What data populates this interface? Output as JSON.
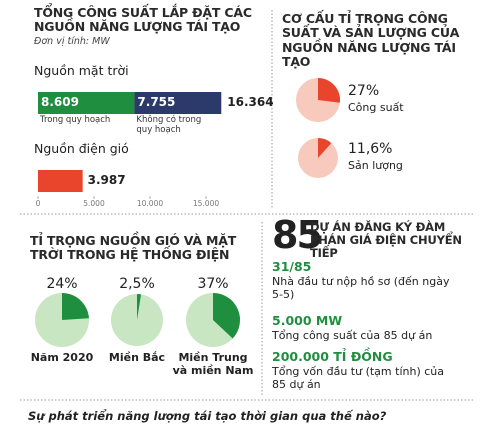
{
  "chart_data": [
    {
      "type": "bar",
      "orientation": "horizontal",
      "title": "TỔNG CÔNG SUẤT LẮP ĐẶT CÁC NGUỒN NĂNG LƯỢNG TÁI TẠO",
      "subtitle": "Đơn vị tính: MW",
      "categories": [
        "Nguồn mặt trời",
        "Nguồn điện gió"
      ],
      "series": [
        {
          "name": "Trong quy hoạch",
          "color": "#1f8f3f",
          "values": [
            8609,
            null
          ],
          "value_labels": [
            "8.609",
            null
          ]
        },
        {
          "name": "Không có trong quy hoạch",
          "color": "#2b3a6b",
          "values": [
            7755,
            null
          ],
          "value_labels": [
            "7.755",
            null
          ]
        },
        {
          "color": "#e8452c",
          "values": [
            null,
            3987
          ],
          "value_labels": [
            null,
            "3.987"
          ]
        }
      ],
      "total_labels": [
        "16.364",
        null
      ],
      "xlim": [
        0,
        20000
      ],
      "xticks": [
        0,
        {
          "value": 5000,
          "label": "5.000"
        },
        {
          "value": 10000,
          "label": "10.000"
        },
        {
          "value": 15000,
          "label": "15.000"
        }
      ]
    },
    {
      "type": "pie",
      "title": "CƠ CẤU TỈ TRỌNG CÔNG SUẤT VÀ SẢN LƯỢNG CỦA NGUỒN NĂNG LƯỢNG TÁI TẠO",
      "categories": [
        "Công suất",
        "Sản lượng"
      ],
      "values": [
        27,
        11.6
      ],
      "value_labels": [
        "27%",
        "11,6%"
      ],
      "color": "#e8452c",
      "base_color": "#f7cabd"
    },
    {
      "type": "pie",
      "title": "TỈ TRỌNG NGUỒN GIÓ VÀ MẶT TRỜI TRONG HỆ THỐNG ĐIỆN",
      "categories": [
        "Năm 2020",
        "Miền Bắc",
        "Miền Trung và miền Nam"
      ],
      "values": [
        24,
        2.5,
        37
      ],
      "value_labels": [
        "24%",
        "2,5%",
        "37%"
      ],
      "color": "#1f8f3f",
      "base_color": "#c8e6c2"
    }
  ],
  "projects": {
    "count": "85",
    "title": "DỰ ÁN ĐĂNG KÝ ĐÀM PHÁN GIÁ ĐIỆN CHUYỂN TIẾP",
    "items": [
      {
        "value": "31/85",
        "text": "Nhà đầu tư nộp hồ sơ (đến ngày 5-5)"
      },
      {
        "value": "5.000 MW",
        "text": "Tổng công suất của 85 dự án"
      },
      {
        "value": "200.000 TỈ ĐỒNG",
        "text": "Tổng vốn đầu tư (tạm tính) của 85 dự án"
      }
    ]
  },
  "caption": "Sự phát triển năng lượng tái tạo thời gian qua thế nào?"
}
